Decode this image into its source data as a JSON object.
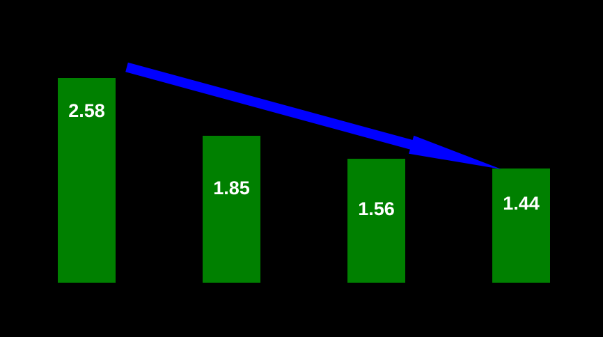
{
  "background_color": "#000000",
  "chart_data": {
    "type": "bar",
    "values": [
      2.58,
      1.85,
      1.56,
      1.44
    ],
    "data_labels": [
      "2.58",
      "1.85",
      "1.56",
      "1.44"
    ],
    "bar_color": "#008000",
    "data_label_color": "#ffffff",
    "background": "#000000",
    "grid": false,
    "axes_visible": false,
    "category_labels_visible": false,
    "legend": "none",
    "annotations": [
      {
        "type": "arrow",
        "name": "downward-trend-arrow",
        "color": "#0000ff",
        "description": "thick blue block arrow sloping down-right from above the first bar to the top of the fourth bar"
      }
    ]
  }
}
